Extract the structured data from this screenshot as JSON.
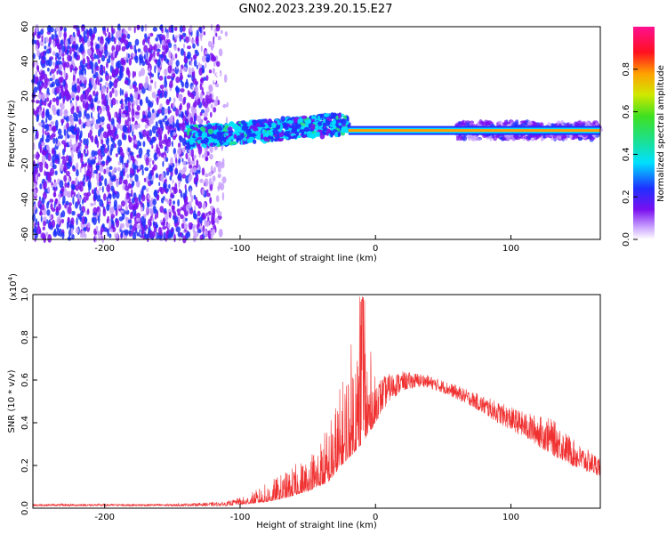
{
  "title": "GN02.2023.239.20.15.E27",
  "chart_data": [
    {
      "type": "heatmap",
      "xlabel": "Height of straight line (km)",
      "ylabel": "Frequency (Hz)",
      "xlim": [
        -253,
        166
      ],
      "ylim": [
        -63,
        60
      ],
      "xticks": [
        -200,
        -100,
        0,
        100
      ],
      "yticks": [
        -60,
        -40,
        -20,
        0,
        20,
        40,
        60
      ],
      "colorbar": {
        "label": "Normalized spectral amplitude",
        "range": [
          0,
          1
        ],
        "ticks": [
          0.0,
          0.2,
          0.4,
          0.6,
          0.8
        ],
        "colormap": "rainbow (white-purple-blue-cyan-green-yellow-orange-red-magenta)"
      },
      "regions": [
        {
          "x": [
            -253,
            -105
          ],
          "y": [
            -63,
            60
          ],
          "description": "scattered low-amplitude purple noise",
          "amplitude": [
            0.05,
            0.3
          ]
        },
        {
          "x": [
            -140,
            -20
          ],
          "y_center": [
            -6,
            4
          ],
          "description": "broad blue/cyan/green band",
          "amplitude": [
            0.2,
            0.5
          ]
        },
        {
          "x": [
            -20,
            166
          ],
          "y_center": [
            0,
            0
          ],
          "description": "narrow red line near 0 Hz",
          "amplitude": [
            0.8,
            0.9
          ]
        }
      ],
      "grid": false
    },
    {
      "type": "line",
      "xlabel": "Height of straight line (km)",
      "ylabel": "SNR (10 * v/v)",
      "multiplier": "(x10",
      "multiplier_exp": "4",
      "multiplier_close": ")",
      "xlim": [
        -253,
        166
      ],
      "ylim": [
        0,
        1.0
      ],
      "xticks": [
        -200,
        -100,
        0,
        100
      ],
      "yticks": [
        0.0,
        0.2,
        0.4,
        0.6,
        0.8,
        1.0
      ],
      "color": "#f03030",
      "grid": false,
      "envelope": [
        {
          "x": -253,
          "base": 0.01,
          "peak": 0.02
        },
        {
          "x": -200,
          "base": 0.01,
          "peak": 0.02
        },
        {
          "x": -150,
          "base": 0.01,
          "peak": 0.02
        },
        {
          "x": -110,
          "base": 0.01,
          "peak": 0.03
        },
        {
          "x": -95,
          "base": 0.02,
          "peak": 0.06
        },
        {
          "x": -80,
          "base": 0.03,
          "peak": 0.12
        },
        {
          "x": -65,
          "base": 0.05,
          "peak": 0.18
        },
        {
          "x": -50,
          "base": 0.08,
          "peak": 0.25
        },
        {
          "x": -35,
          "base": 0.12,
          "peak": 0.4
        },
        {
          "x": -25,
          "base": 0.2,
          "peak": 0.6
        },
        {
          "x": -10,
          "base": 0.3,
          "peak": 1.0
        },
        {
          "x": 0,
          "base": 0.4,
          "peak": 0.6
        },
        {
          "x": 10,
          "base": 0.5,
          "peak": 0.63
        },
        {
          "x": 20,
          "base": 0.55,
          "peak": 0.64
        },
        {
          "x": 35,
          "base": 0.57,
          "peak": 0.63
        },
        {
          "x": 50,
          "base": 0.54,
          "peak": 0.6
        },
        {
          "x": 70,
          "base": 0.48,
          "peak": 0.55
        },
        {
          "x": 90,
          "base": 0.4,
          "peak": 0.5
        },
        {
          "x": 110,
          "base": 0.33,
          "peak": 0.45
        },
        {
          "x": 130,
          "base": 0.25,
          "peak": 0.42
        },
        {
          "x": 150,
          "base": 0.18,
          "peak": 0.3
        },
        {
          "x": 166,
          "base": 0.15,
          "peak": 0.24
        }
      ]
    }
  ]
}
